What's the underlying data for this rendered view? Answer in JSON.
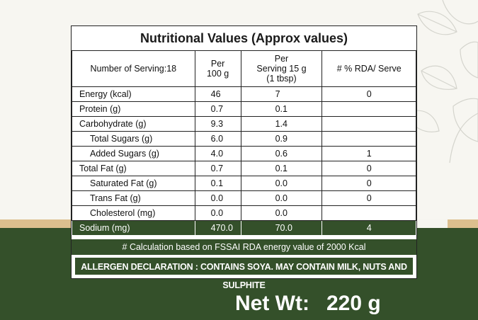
{
  "panel": {
    "title": "Nutritional Values (Approx values)"
  },
  "table": {
    "headers": {
      "servings_label": "Number of Serving:",
      "servings_value": "18",
      "per100_line1": "Per",
      "per100_line2": "100 g",
      "serving_line1": "Per",
      "serving_line2": "Serving 15 g",
      "serving_line3": "(1 tbsp)",
      "rda": "# % RDA/ Serve"
    },
    "rows": [
      {
        "name": "Energy (kcal)",
        "per100": "46",
        "per_serving": "7",
        "rda": "0"
      },
      {
        "name": "Protein (g)",
        "per100": "0.7",
        "per_serving": "0.1",
        "rda": ""
      },
      {
        "name": "Carbohydrate (g)",
        "per100": "9.3",
        "per_serving": "1.4",
        "rda": ""
      },
      {
        "name": "Total Sugars (g)",
        "per100": "6.0",
        "per_serving": "0.9",
        "rda": ""
      },
      {
        "name": "Added Sugars (g)",
        "per100": "4.0",
        "per_serving": "0.6",
        "rda": "1"
      },
      {
        "name": "Total Fat (g)",
        "per100": "0.7",
        "per_serving": "0.1",
        "rda": "0"
      },
      {
        "name": "Saturated Fat (g)",
        "per100": "0.1",
        "per_serving": "0.0",
        "rda": "0"
      },
      {
        "name": "Trans Fat (g)",
        "per100": "0.0",
        "per_serving": "0.0",
        "rda": "0"
      },
      {
        "name": "Cholesterol (mg)",
        "per100": "0.0",
        "per_serving": "0.0",
        "rda": ""
      },
      {
        "name": "Sodium (mg)",
        "per100": "470.0",
        "per_serving": "70.0",
        "rda": "4"
      }
    ]
  },
  "footnote": "# Calculation based on FSSAI RDA energy value of 2000 Kcal",
  "allergen": "ALLERGEN DECLARATION : CONTAINS SOYA. MAY CONTAIN MILK, NUTS AND SULPHITE",
  "net_weight": {
    "label": "Net Wt:",
    "value": "220 g"
  },
  "colors": {
    "brand_green": "#34502a",
    "tan_accent": "#dcbf8e",
    "background": "#f7f6f1"
  },
  "icons": {
    "decoration": "leaf-sketch-icon"
  }
}
